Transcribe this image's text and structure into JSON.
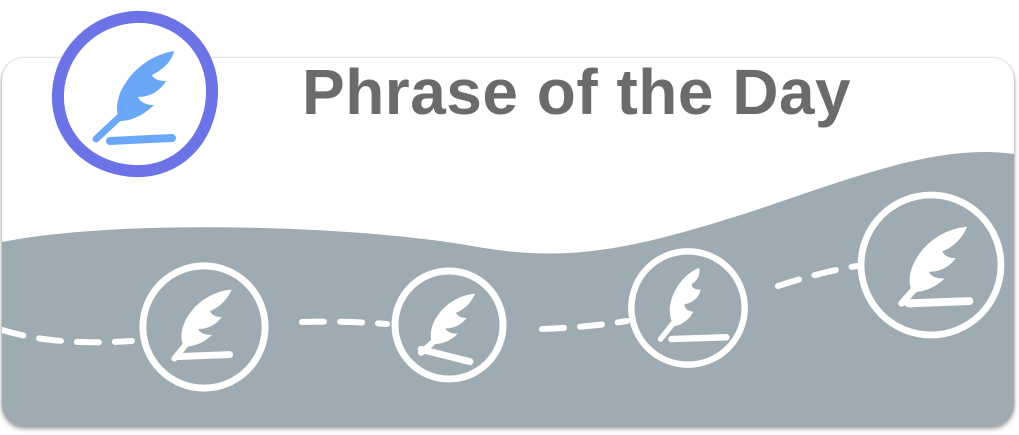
{
  "app": {
    "title": "Phrase of the Day"
  },
  "colors": {
    "logo_ring": "#6b73e6",
    "logo_feather": "#6aa8f7",
    "wave": "#9eabb2",
    "badge_stroke": "#ffffff",
    "title_text": "#6b6b6b"
  },
  "icons": {
    "logo": "quill-feather-icon",
    "badge": "quill-feather-icon"
  },
  "badges": [
    {
      "name": "day-badge-1"
    },
    {
      "name": "day-badge-2"
    },
    {
      "name": "day-badge-3"
    },
    {
      "name": "day-badge-4"
    }
  ]
}
